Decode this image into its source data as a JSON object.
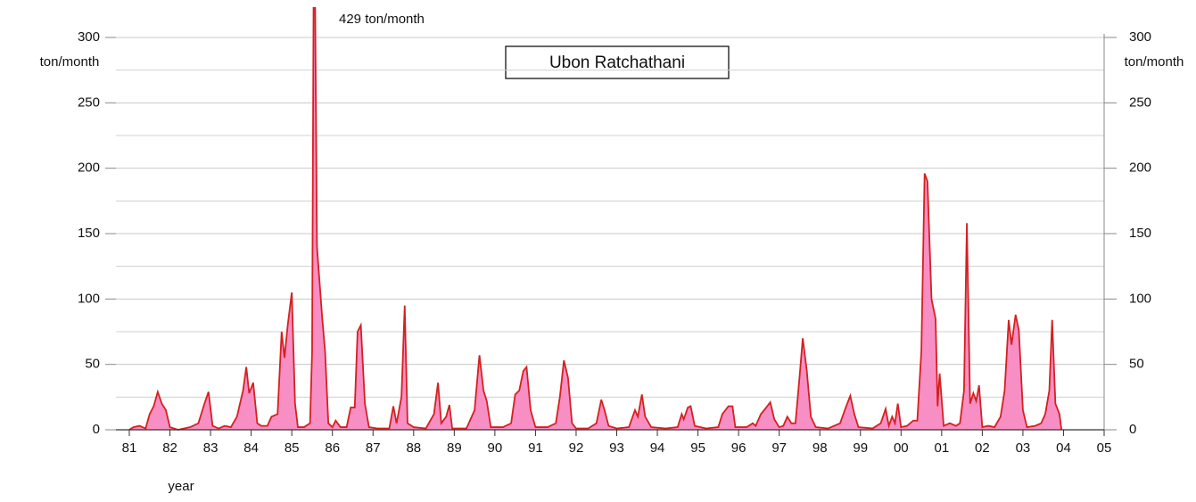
{
  "chart_data": {
    "type": "area",
    "title": "Ubon Ratchathani",
    "annotation": "429 ton/month",
    "y_label": "ton/month",
    "y2_label": "ton/month",
    "x_label": "year",
    "color": "#d42020",
    "fill": "#f78fc4",
    "grid": true,
    "xlim": [
      1981,
      2005
    ],
    "xticks": [
      {
        "value": 1981,
        "label": "81"
      },
      {
        "value": 1982,
        "label": "82"
      },
      {
        "value": 1983,
        "label": "83"
      },
      {
        "value": 1984,
        "label": "84"
      },
      {
        "value": 1985,
        "label": "85"
      },
      {
        "value": 1986,
        "label": "86"
      },
      {
        "value": 1987,
        "label": "87"
      },
      {
        "value": 1988,
        "label": "88"
      },
      {
        "value": 1989,
        "label": "89"
      },
      {
        "value": 1990,
        "label": "90"
      },
      {
        "value": 1991,
        "label": "91"
      },
      {
        "value": 1992,
        "label": "92"
      },
      {
        "value": 1993,
        "label": "93"
      },
      {
        "value": 1994,
        "label": "94"
      },
      {
        "value": 1995,
        "label": "95"
      },
      {
        "value": 1996,
        "label": "96"
      },
      {
        "value": 1997,
        "label": "97"
      },
      {
        "value": 1998,
        "label": "98"
      },
      {
        "value": 1999,
        "label": "99"
      },
      {
        "value": 2000,
        "label": "00"
      },
      {
        "value": 2001,
        "label": "01"
      },
      {
        "value": 2002,
        "label": "02"
      },
      {
        "value": 2003,
        "label": "03"
      },
      {
        "value": 2004,
        "label": "04"
      },
      {
        "value": 2005,
        "label": "05"
      }
    ],
    "ylim": [
      0,
      300
    ],
    "yticks": [
      0,
      50,
      100,
      150,
      200,
      250,
      300
    ],
    "minor_yticks": [
      25,
      75,
      125,
      175,
      225,
      275
    ],
    "y2lim": [
      0,
      300
    ],
    "y2ticks": [
      0,
      50,
      100,
      150,
      200,
      250,
      300
    ],
    "x": [
      1981.0,
      1981.1,
      1981.25,
      1981.4,
      1981.5,
      1981.6,
      1981.7,
      1981.8,
      1981.9,
      1982.0,
      1982.2,
      1982.5,
      1982.7,
      1982.85,
      1982.95,
      1983.05,
      1983.2,
      1983.35,
      1983.5,
      1983.65,
      1983.8,
      1983.88,
      1983.95,
      1984.05,
      1984.15,
      1984.25,
      1984.4,
      1984.5,
      1984.65,
      1984.75,
      1984.82,
      1984.9,
      1985.0,
      1985.08,
      1985.15,
      1985.3,
      1985.45,
      1985.5,
      1985.55,
      1985.62,
      1985.75,
      1985.82,
      1985.9,
      1986.0,
      1986.08,
      1986.2,
      1986.35,
      1986.45,
      1986.55,
      1986.62,
      1986.7,
      1986.8,
      1986.9,
      1987.1,
      1987.4,
      1987.5,
      1987.58,
      1987.7,
      1987.78,
      1987.85,
      1988.0,
      1988.3,
      1988.5,
      1988.6,
      1988.68,
      1988.8,
      1988.88,
      1988.95,
      1989.3,
      1989.5,
      1989.62,
      1989.72,
      1989.8,
      1989.9,
      1990.2,
      1990.4,
      1990.5,
      1990.6,
      1990.7,
      1990.78,
      1990.88,
      1991.0,
      1991.3,
      1991.5,
      1991.6,
      1991.7,
      1991.8,
      1991.9,
      1992.0,
      1992.3,
      1992.5,
      1992.62,
      1992.7,
      1992.8,
      1993.0,
      1993.3,
      1993.45,
      1993.52,
      1993.62,
      1993.7,
      1993.85,
      1994.2,
      1994.5,
      1994.6,
      1994.65,
      1994.75,
      1994.82,
      1994.92,
      1995.2,
      1995.5,
      1995.6,
      1995.75,
      1995.85,
      1995.92,
      1996.2,
      1996.35,
      1996.42,
      1996.55,
      1996.68,
      1996.78,
      1996.88,
      1997.0,
      1997.1,
      1997.2,
      1997.3,
      1997.4,
      1997.5,
      1997.58,
      1997.68,
      1997.78,
      1997.9,
      1998.2,
      1998.5,
      1998.65,
      1998.75,
      1998.85,
      1998.95,
      1999.3,
      1999.5,
      1999.62,
      1999.7,
      1999.78,
      1999.85,
      1999.92,
      2000.0,
      2000.15,
      2000.3,
      2000.4,
      2000.5,
      2000.58,
      2000.65,
      2000.75,
      2000.85,
      2000.9,
      2000.95,
      2001.05,
      2001.2,
      2001.35,
      2001.45,
      2001.55,
      2001.62,
      2001.7,
      2001.78,
      2001.85,
      2001.92,
      2002.0,
      2002.15,
      2002.3,
      2002.45,
      2002.55,
      2002.65,
      2002.72,
      2002.82,
      2002.9,
      2003.0,
      2003.1,
      2003.3,
      2003.45,
      2003.55,
      2003.65,
      2003.72,
      2003.8,
      2003.9,
      2003.95
    ],
    "values": [
      0,
      2,
      3,
      1,
      12,
      18,
      29,
      20,
      15,
      2,
      0,
      2,
      5,
      20,
      29,
      3,
      1,
      3,
      2,
      10,
      30,
      48,
      28,
      36,
      5,
      3,
      3,
      10,
      12,
      75,
      55,
      80,
      105,
      20,
      2,
      2,
      5,
      60,
      429,
      140,
      85,
      60,
      5,
      2,
      7,
      2,
      2,
      17,
      17,
      75,
      80,
      20,
      2,
      1,
      1,
      18,
      5,
      25,
      95,
      5,
      2,
      1,
      12,
      36,
      5,
      10,
      19,
      1,
      1,
      15,
      57,
      30,
      22,
      2,
      2,
      5,
      27,
      30,
      45,
      48,
      15,
      2,
      2,
      5,
      25,
      53,
      40,
      5,
      1,
      1,
      5,
      23,
      15,
      3,
      1,
      2,
      15,
      10,
      27,
      10,
      2,
      1,
      2,
      12,
      8,
      17,
      18,
      3,
      1,
      2,
      12,
      18,
      18,
      2,
      2,
      5,
      3,
      12,
      17,
      21,
      8,
      2,
      3,
      10,
      5,
      5,
      40,
      70,
      45,
      10,
      2,
      1,
      5,
      18,
      26,
      12,
      2,
      1,
      5,
      16,
      3,
      10,
      5,
      20,
      2,
      3,
      7,
      7,
      60,
      196,
      190,
      100,
      85,
      18,
      43,
      3,
      5,
      3,
      5,
      30,
      158,
      20,
      28,
      22,
      34,
      2,
      3,
      2,
      10,
      30,
      84,
      65,
      88,
      76,
      15,
      2,
      3,
      5,
      12,
      30,
      84,
      20,
      12,
      0
    ]
  }
}
